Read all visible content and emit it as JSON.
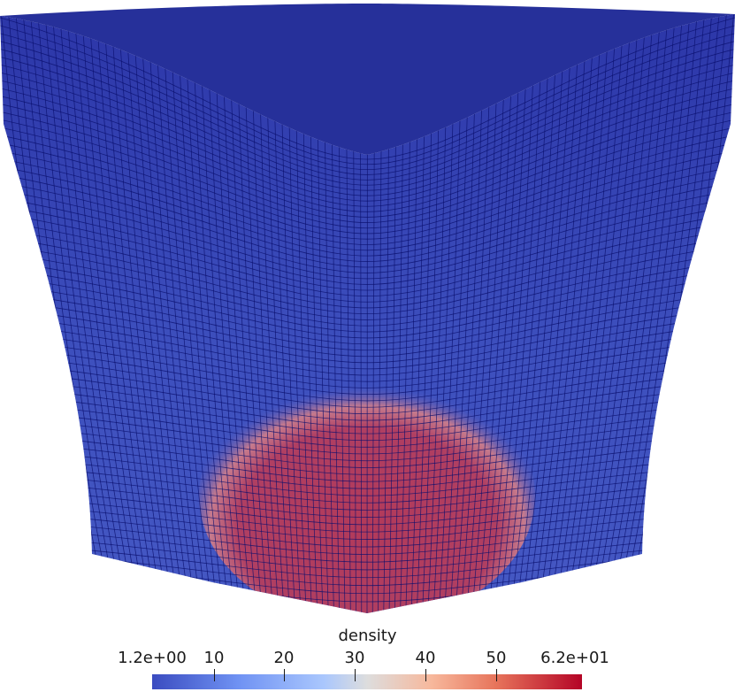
{
  "scalar_bar": {
    "title": "density",
    "ticks": [
      {
        "label": "1.2e+00",
        "value": 1.2
      },
      {
        "label": "10",
        "value": 10
      },
      {
        "label": "20",
        "value": 20
      },
      {
        "label": "30",
        "value": 30
      },
      {
        "label": "40",
        "value": 40
      },
      {
        "label": "50",
        "value": 50
      },
      {
        "label": "6.2e+01",
        "value": 62
      }
    ],
    "range": [
      1.2,
      62
    ],
    "colormap": [
      "#3b4cc0",
      "#dddddd",
      "#b40426"
    ]
  },
  "colors": {
    "mesh_low": "#3644b3",
    "mesh_high": "#b32a45",
    "grid_line": "#0a0f6e",
    "background": "#ffffff"
  }
}
